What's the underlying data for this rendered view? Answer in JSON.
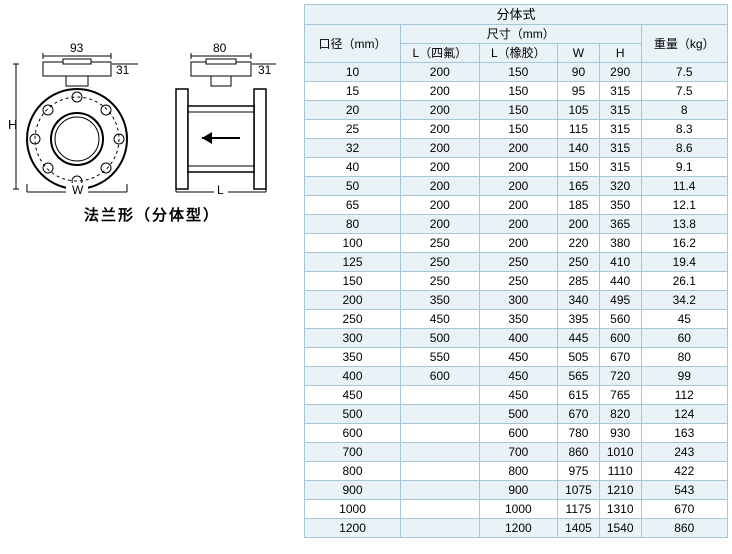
{
  "diagram": {
    "dims": {
      "top_w1": "93",
      "top_h1": "31",
      "top_w2": "80",
      "top_h2": "31",
      "H": "H",
      "W": "W",
      "L": "L"
    },
    "caption": "法兰形（分体型）",
    "arrow": "←"
  },
  "table": {
    "title": "分体式",
    "head": {
      "col1": "口径（mm）",
      "col2_group": "尺寸（mm）",
      "col2a": "L（四氟）",
      "col2b": "L（橡胶）",
      "col2c": "W",
      "col2d": "H",
      "col3": "重量（kg）"
    },
    "colors": {
      "border": "#a7c7d9",
      "header_bg": "#e8f2f7",
      "row_odd_bg": "#e8f2f7",
      "row_even_bg": "#ffffff",
      "text": "#000000"
    },
    "rows": [
      [
        "10",
        "200",
        "150",
        "90",
        "290",
        "7.5"
      ],
      [
        "15",
        "200",
        "150",
        "95",
        "315",
        "7.5"
      ],
      [
        "20",
        "200",
        "150",
        "105",
        "315",
        "8"
      ],
      [
        "25",
        "200",
        "150",
        "115",
        "315",
        "8.3"
      ],
      [
        "32",
        "200",
        "200",
        "140",
        "315",
        "8.6"
      ],
      [
        "40",
        "200",
        "200",
        "150",
        "315",
        "9.1"
      ],
      [
        "50",
        "200",
        "200",
        "165",
        "320",
        "11.4"
      ],
      [
        "65",
        "200",
        "200",
        "185",
        "350",
        "12.1"
      ],
      [
        "80",
        "200",
        "200",
        "200",
        "365",
        "13.8"
      ],
      [
        "100",
        "250",
        "200",
        "220",
        "380",
        "16.2"
      ],
      [
        "125",
        "250",
        "250",
        "250",
        "410",
        "19.4"
      ],
      [
        "150",
        "250",
        "250",
        "285",
        "440",
        "26.1"
      ],
      [
        "200",
        "350",
        "300",
        "340",
        "495",
        "34.2"
      ],
      [
        "250",
        "450",
        "350",
        "395",
        "560",
        "45"
      ],
      [
        "300",
        "500",
        "400",
        "445",
        "600",
        "60"
      ],
      [
        "350",
        "550",
        "450",
        "505",
        "670",
        "80"
      ],
      [
        "400",
        "600",
        "450",
        "565",
        "720",
        "99"
      ],
      [
        "450",
        "",
        "450",
        "615",
        "765",
        "112"
      ],
      [
        "500",
        "",
        "500",
        "670",
        "820",
        "124"
      ],
      [
        "600",
        "",
        "600",
        "780",
        "930",
        "163"
      ],
      [
        "700",
        "",
        "700",
        "860",
        "1010",
        "243"
      ],
      [
        "800",
        "",
        "800",
        "975",
        "1110",
        "422"
      ],
      [
        "900",
        "",
        "900",
        "1075",
        "1210",
        "543"
      ],
      [
        "1000",
        "",
        "1000",
        "1175",
        "1310",
        "670"
      ],
      [
        "1200",
        "",
        "1200",
        "1405",
        "1540",
        "860"
      ]
    ]
  }
}
